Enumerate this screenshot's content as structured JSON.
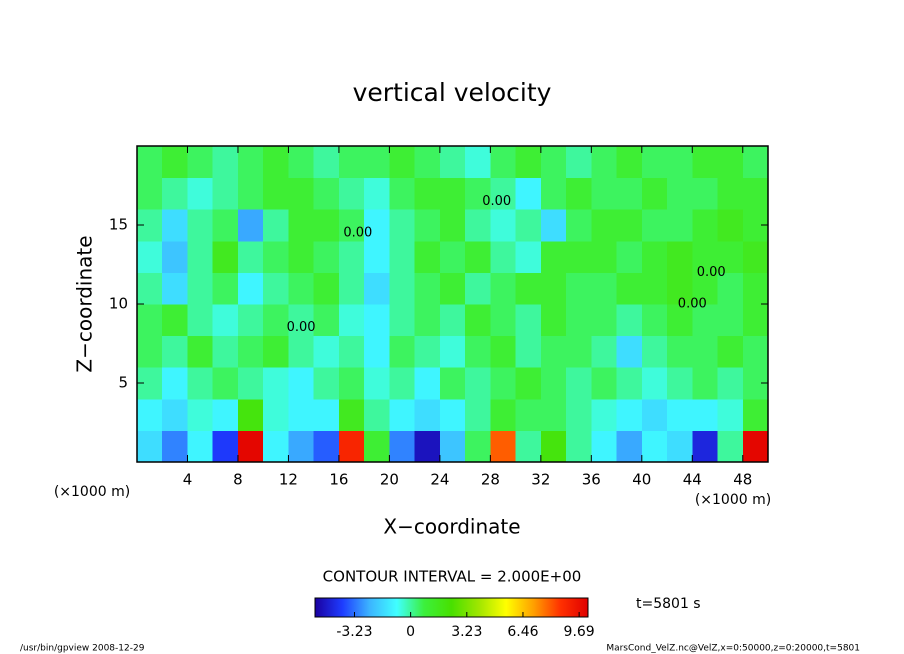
{
  "chart_data": {
    "type": "contour",
    "title": "vertical velocity",
    "x_label": "X−coordinate",
    "y_label": "Z−coordinate",
    "x_unit_left": "(×1000 m)",
    "x_unit_right": "(×1000 m)",
    "xlim": [
      0,
      50
    ],
    "ylim": [
      0,
      20
    ],
    "xticks": [
      4,
      8,
      12,
      16,
      20,
      24,
      28,
      32,
      36,
      40,
      44,
      48
    ],
    "yticks": [
      5,
      10,
      15
    ],
    "x": [
      1,
      3,
      5,
      7,
      9,
      11,
      13,
      15,
      17,
      19,
      21,
      23,
      25,
      27,
      29,
      31,
      33,
      35,
      37,
      39,
      41,
      43,
      45,
      47,
      49
    ],
    "z": [
      1,
      3,
      5,
      7,
      9,
      11,
      13,
      15,
      17,
      19
    ],
    "values": [
      [
        -1.5,
        -3,
        -1,
        -4,
        10,
        -1,
        -2.5,
        -3.5,
        9,
        1,
        -3,
        -5,
        -2,
        0.5,
        8,
        0,
        2,
        0,
        -1,
        -2.5,
        -1,
        -1.5,
        -4.5,
        0,
        10
      ],
      [
        -1,
        -1.5,
        -0.5,
        -1,
        2,
        -0.5,
        -1,
        -1,
        1.5,
        0,
        -1,
        -1.5,
        -1,
        0,
        1,
        0.5,
        0.5,
        0,
        -0.5,
        -1,
        -1.5,
        -1,
        -1,
        -0.5,
        1
      ],
      [
        0,
        -1,
        0,
        0.5,
        0,
        -0.5,
        -1,
        0,
        0.5,
        -0.5,
        0,
        -1,
        0.5,
        0,
        0.5,
        1,
        0.5,
        0,
        0.5,
        0,
        -0.5,
        0,
        0.5,
        0,
        0.5
      ],
      [
        0.5,
        0,
        1,
        0,
        0.5,
        1,
        0,
        -0.5,
        0,
        -1,
        0.5,
        0,
        -0.5,
        0.5,
        1,
        0,
        0.5,
        0.5,
        0,
        -1.5,
        0,
        0.5,
        0.5,
        1,
        0.5
      ],
      [
        0.5,
        1,
        0,
        -0.5,
        0,
        0.5,
        0,
        0.5,
        -0.5,
        -1,
        0,
        0.5,
        0,
        1,
        0.5,
        0,
        1,
        0.5,
        0.5,
        0,
        0.5,
        1,
        0.5,
        0.5,
        1
      ],
      [
        0,
        -1.5,
        0,
        0.5,
        -1,
        0,
        0.5,
        1,
        0,
        -1.5,
        0,
        0.5,
        1,
        0,
        0.5,
        1,
        1,
        0.5,
        0.5,
        1,
        1,
        1.5,
        1,
        0.5,
        1
      ],
      [
        -0.5,
        -2,
        0,
        1.5,
        0,
        0.5,
        1,
        0.5,
        0,
        -1,
        0,
        1,
        0.5,
        1,
        0,
        -0.5,
        1,
        1,
        1,
        0.5,
        1,
        1.5,
        1,
        1,
        1.5
      ],
      [
        0,
        -1.5,
        0,
        0.5,
        -2.5,
        0,
        1,
        1,
        0.5,
        -1,
        0,
        0.5,
        1,
        0,
        -0.5,
        0,
        -1.5,
        0.5,
        1,
        1,
        0.5,
        0.5,
        1,
        1.5,
        1
      ],
      [
        0.5,
        0,
        -0.5,
        0,
        0.5,
        1,
        1,
        0.5,
        0,
        -0.5,
        0.5,
        1,
        1,
        0.5,
        0,
        -1,
        0.5,
        1,
        0.5,
        0.5,
        1,
        0.5,
        0.5,
        1,
        1
      ],
      [
        0.5,
        1,
        0.5,
        0,
        0.5,
        1,
        0.5,
        0,
        0.5,
        0.5,
        1,
        0.5,
        0,
        -0.5,
        0.5,
        1,
        0.5,
        0,
        0.5,
        1,
        0.5,
        0.5,
        1,
        1,
        0.5
      ]
    ],
    "contour_labels": [
      {
        "text": "0.00",
        "x": 13,
        "y": 8.5
      },
      {
        "text": "0.00",
        "x": 28.5,
        "y": 16.5
      },
      {
        "text": "0.00",
        "x": 45.5,
        "y": 12
      },
      {
        "text": "0.00",
        "x": 44,
        "y": 10
      },
      {
        "text": "0.00",
        "x": 17.5,
        "y": 14.5
      }
    ],
    "colormap": [
      "#1a00a0",
      "#1e3cff",
      "#3cb4ff",
      "#40ffff",
      "#3cf03c",
      "#48e000",
      "#a0e600",
      "#ffff00",
      "#ffa000",
      "#ff3000",
      "#e00000"
    ],
    "clim": [
      -5.5,
      10.2
    ],
    "colorbar_ticks": [
      -3.23,
      0,
      3.23,
      6.46,
      9.69
    ],
    "contour_interval": "CONTOUR INTERVAL = 2.000E+00",
    "time_label": "t=5801 s",
    "footer_left": "/usr/bin/gpview   2008-12-29",
    "footer_right": "MarsCond_VelZ.nc@VelZ,x=0:50000,z=0:20000,t=5801"
  }
}
